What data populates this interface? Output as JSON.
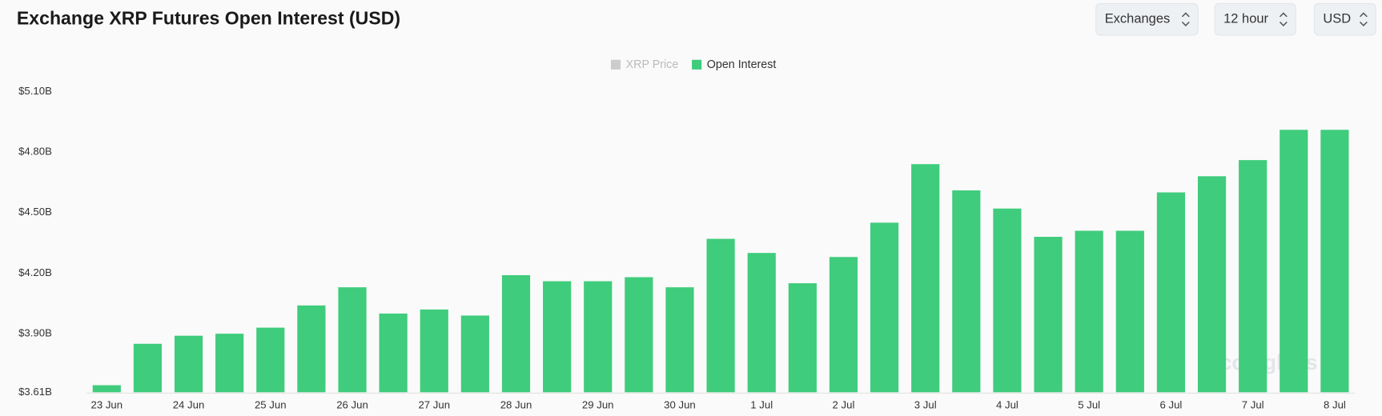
{
  "chart_data": {
    "type": "bar",
    "title": "Exchange XRP Futures Open Interest (USD)",
    "controls": [
      "Exchanges",
      "12 hour",
      "USD"
    ],
    "watermark": "coinglass",
    "inactive_legend": [
      {
        "name": "XRP Price",
        "color": "#cccccc"
      }
    ],
    "categories": [
      "23 Jun",
      null,
      "24 Jun",
      null,
      "25 Jun",
      null,
      "26 Jun",
      null,
      "27 Jun",
      null,
      "28 Jun",
      null,
      "29 Jun",
      null,
      "30 Jun",
      null,
      "1 Jul",
      null,
      "2 Jul",
      null,
      "3 Jul",
      null,
      "4 Jul",
      null,
      "5 Jul",
      null,
      "6 Jul",
      null,
      "7 Jul",
      null,
      "8 Jul"
    ],
    "series": [
      {
        "name": "Open Interest",
        "color": "#3fcc7c",
        "values": [
          3.645,
          3.85,
          3.89,
          3.9,
          3.93,
          4.04,
          4.13,
          4.0,
          4.02,
          3.99,
          4.19,
          4.16,
          4.16,
          4.18,
          4.13,
          4.37,
          4.3,
          4.15,
          4.28,
          4.45,
          4.74,
          4.61,
          4.52,
          4.38,
          4.41,
          4.41,
          4.6,
          4.68,
          4.76,
          4.91,
          4.91
        ]
      }
    ],
    "ylim": [
      3.61,
      5.1
    ],
    "yticks": [
      {
        "value": 3.61,
        "label": "$3.61B"
      },
      {
        "value": 3.9,
        "label": "$3.90B"
      },
      {
        "value": 4.2,
        "label": "$4.20B"
      },
      {
        "value": 4.5,
        "label": "$4.50B"
      },
      {
        "value": 4.8,
        "label": "$4.80B"
      },
      {
        "value": 5.1,
        "label": "$5.10B"
      }
    ],
    "grid": false
  }
}
